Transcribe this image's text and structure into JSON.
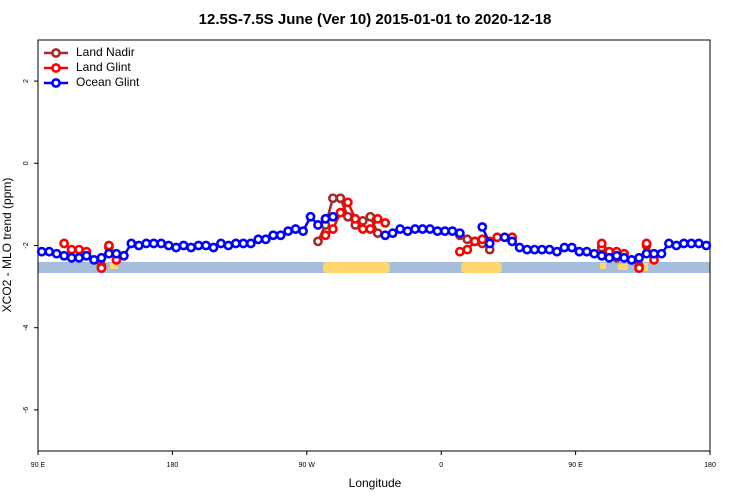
{
  "chart_data": {
    "type": "line",
    "title": "12.5S-7.5S June (Ver 10)   2015-01-01 to 2020-12-18",
    "x_label": "Longitude",
    "y_label": "XCO2 - MLO trend (ppm)",
    "x": [
      92.5,
      97.5,
      102.5,
      107.5,
      112.5,
      117.5,
      122.5,
      127.5,
      132.5,
      137.5,
      142.5,
      147.5,
      152.5,
      157.5,
      162.5,
      167.5,
      172.5,
      177.5,
      182.5,
      187.5,
      192.5,
      197.5,
      202.5,
      207.5,
      212.5,
      217.5,
      222.5,
      227.5,
      232.5,
      237.5,
      242.5,
      247.5,
      252.5,
      257.5,
      262.5,
      267.5,
      272.5,
      277.5,
      282.5,
      287.5,
      292.5,
      297.5,
      302.5,
      307.5,
      312.5,
      317.5,
      322.5,
      327.5,
      332.5,
      337.5,
      342.5,
      347.5,
      352.5,
      357.5,
      362.5,
      367.5,
      372.5,
      377.5,
      382.5,
      387.5,
      392.5,
      397.5,
      402.5,
      407.5,
      412.5,
      417.5,
      422.5,
      427.5,
      432.5,
      437.5,
      442.5,
      447.5,
      452.5,
      457.5,
      462.5,
      467.5,
      472.5,
      477.5,
      482.5,
      487.5,
      492.5,
      497.5,
      502.5,
      507.5,
      512.5,
      517.5,
      522.5,
      527.5,
      532.5,
      537.5
    ],
    "series": [
      {
        "name": "Land Nadir",
        "color": "#a52a2a",
        "values": [
          null,
          null,
          null,
          null,
          null,
          null,
          null,
          null,
          -2.5,
          -2.05,
          null,
          null,
          null,
          null,
          null,
          null,
          null,
          null,
          null,
          null,
          null,
          null,
          null,
          null,
          null,
          null,
          null,
          null,
          null,
          null,
          null,
          null,
          null,
          null,
          null,
          null,
          null,
          -1.9,
          -1.5,
          -0.85,
          -0.85,
          -1.3,
          -1.5,
          -1.4,
          -1.3,
          -1.7,
          null,
          null,
          null,
          null,
          null,
          null,
          null,
          null,
          null,
          null,
          -1.75,
          -1.85,
          -1.9,
          -1.95,
          -2.1,
          null,
          null,
          null,
          null,
          null,
          null,
          null,
          null,
          null,
          null,
          null,
          null,
          null,
          null,
          -2.05,
          -2.2,
          -2.3,
          null,
          null,
          -2.5,
          -2.0,
          null,
          null,
          null,
          null,
          null,
          null,
          null,
          null
        ]
      },
      {
        "name": "Land Glint",
        "color": "#ff0000",
        "values": [
          null,
          null,
          null,
          -1.95,
          -2.1,
          -2.1,
          -2.15,
          null,
          -2.55,
          -2.0,
          -2.35,
          null,
          null,
          null,
          null,
          null,
          null,
          null,
          null,
          null,
          null,
          null,
          null,
          null,
          null,
          null,
          null,
          null,
          null,
          null,
          null,
          null,
          null,
          null,
          null,
          null,
          null,
          null,
          -1.75,
          -1.6,
          -1.2,
          -0.95,
          -1.35,
          -1.6,
          -1.6,
          -1.35,
          -1.45,
          null,
          null,
          null,
          null,
          null,
          null,
          null,
          null,
          null,
          -2.15,
          -2.1,
          -1.9,
          -1.85,
          -1.9,
          -1.8,
          null,
          -1.8,
          null,
          null,
          null,
          null,
          null,
          null,
          null,
          null,
          null,
          null,
          null,
          -1.95,
          -2.15,
          -2.15,
          -2.2,
          null,
          -2.55,
          -1.95,
          -2.35,
          null,
          null,
          null,
          null,
          null,
          null,
          null
        ]
      },
      {
        "name": "Ocean Glint",
        "color": "#0000ff",
        "values": [
          -2.15,
          -2.15,
          -2.2,
          -2.25,
          -2.3,
          -2.3,
          -2.25,
          -2.35,
          -2.3,
          -2.2,
          -2.2,
          -2.25,
          -1.95,
          -2.0,
          -1.95,
          -1.95,
          -1.95,
          -2.0,
          -2.05,
          -2.0,
          -2.05,
          -2.0,
          -2.0,
          -2.05,
          -1.95,
          -2.0,
          -1.95,
          -1.95,
          -1.95,
          -1.85,
          -1.85,
          -1.75,
          -1.75,
          -1.65,
          -1.6,
          -1.65,
          -1.3,
          -1.5,
          -1.35,
          -1.3,
          null,
          null,
          null,
          null,
          null,
          null,
          -1.75,
          -1.7,
          -1.6,
          -1.65,
          -1.6,
          -1.6,
          -1.6,
          -1.65,
          -1.65,
          -1.65,
          -1.7,
          null,
          null,
          -1.55,
          -1.95,
          null,
          -1.8,
          -1.9,
          -2.05,
          -2.1,
          -2.1,
          -2.1,
          -2.1,
          -2.15,
          -2.05,
          -2.05,
          -2.15,
          -2.15,
          -2.2,
          -2.25,
          -2.3,
          -2.25,
          -2.3,
          -2.35,
          -2.3,
          -2.2,
          -2.2,
          -2.2,
          -1.95,
          -2.0,
          -1.95,
          -1.95,
          -1.95,
          -2.0
        ]
      }
    ],
    "xlim": [
      90,
      540
    ],
    "xticks": [
      {
        "value": 90,
        "label": "90 E"
      },
      180,
      {
        "value": 270,
        "label": "90 W"
      },
      {
        "value": 360,
        "label": "0"
      },
      {
        "value": 450,
        "label": "90 E"
      },
      {
        "value": 540,
        "label": "180"
      }
    ],
    "ylim": [
      -7,
      3
    ],
    "yticks": [
      -6,
      -4,
      -2,
      0,
      2
    ],
    "legend": "top-left"
  }
}
